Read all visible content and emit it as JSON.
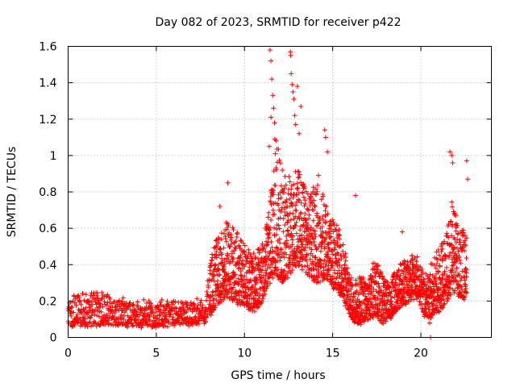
{
  "chart_data": {
    "type": "scatter",
    "title": "Day 082 of 2023, SRMTID for receiver p422",
    "xlabel": "GPS time / hours",
    "ylabel": "SRMTID / TECUs",
    "xlim": [
      0,
      24
    ],
    "ylim": [
      0,
      1.6
    ],
    "xticks": [
      0,
      5,
      10,
      15,
      20
    ],
    "yticks": [
      0,
      0.2,
      0.4,
      0.6,
      0.8,
      1,
      1.2,
      1.4,
      1.6
    ],
    "xtick_labels": [
      "0",
      "5",
      "10",
      "15",
      "20"
    ],
    "ytick_labels": [
      "0",
      "0.2",
      "0.4",
      "0.6",
      "0.8",
      "1",
      "1.2",
      "1.4",
      "1.6"
    ],
    "grid": true,
    "marker": "+",
    "color": "#ff0000",
    "series": [
      {
        "name": "SRMTID",
        "profile_x": [
          0.0,
          1.0,
          2.0,
          3.0,
          4.0,
          5.0,
          6.0,
          7.0,
          7.8,
          8.2,
          8.6,
          9.0,
          9.4,
          9.8,
          10.2,
          10.6,
          11.0,
          11.4,
          11.8,
          12.2,
          12.6,
          13.0,
          13.4,
          13.8,
          14.2,
          14.6,
          15.0,
          15.4,
          15.8,
          16.2,
          16.6,
          17.0,
          17.4,
          17.8,
          18.2,
          18.6,
          19.0,
          19.4,
          19.8,
          20.2,
          20.6,
          21.0,
          21.4,
          21.8,
          22.2,
          22.6
        ],
        "profile_y_low": [
          0.06,
          0.06,
          0.07,
          0.07,
          0.06,
          0.06,
          0.07,
          0.07,
          0.08,
          0.15,
          0.2,
          0.22,
          0.2,
          0.18,
          0.16,
          0.15,
          0.2,
          0.3,
          0.34,
          0.3,
          0.35,
          0.4,
          0.36,
          0.32,
          0.3,
          0.32,
          0.28,
          0.24,
          0.16,
          0.08,
          0.08,
          0.1,
          0.12,
          0.08,
          0.1,
          0.15,
          0.18,
          0.2,
          0.22,
          0.12,
          0.1,
          0.14,
          0.18,
          0.25,
          0.22,
          0.2
        ],
        "profile_y_high": [
          0.22,
          0.24,
          0.25,
          0.22,
          0.2,
          0.2,
          0.2,
          0.2,
          0.22,
          0.5,
          0.6,
          0.65,
          0.6,
          0.55,
          0.5,
          0.45,
          0.55,
          0.7,
          1.1,
          0.95,
          0.9,
          0.95,
          0.85,
          0.8,
          0.9,
          0.75,
          0.65,
          0.6,
          0.42,
          0.3,
          0.35,
          0.3,
          0.45,
          0.35,
          0.3,
          0.38,
          0.42,
          0.45,
          0.45,
          0.35,
          0.4,
          0.5,
          0.55,
          0.8,
          0.6,
          0.6
        ],
        "outliers": [
          [
            11.45,
            1.58
          ],
          [
            11.5,
            1.52
          ],
          [
            11.55,
            1.42
          ],
          [
            11.6,
            1.33
          ],
          [
            11.65,
            1.26
          ],
          [
            11.7,
            1.18
          ],
          [
            11.72,
            1.09
          ],
          [
            11.75,
            1.01
          ],
          [
            11.4,
            1.05
          ],
          [
            11.5,
            1.21
          ],
          [
            12.6,
            1.57
          ],
          [
            12.62,
            1.55
          ],
          [
            12.7,
            1.39
          ],
          [
            12.75,
            1.35
          ],
          [
            12.8,
            1.31
          ],
          [
            12.65,
            1.45
          ],
          [
            12.85,
            1.22
          ],
          [
            13.0,
            1.38
          ],
          [
            13.2,
            1.27
          ],
          [
            12.9,
            1.17
          ],
          [
            13.1,
            1.12
          ],
          [
            14.55,
            1.14
          ],
          [
            14.6,
            1.1
          ],
          [
            14.7,
            1.02
          ],
          [
            21.65,
            1.02
          ],
          [
            21.75,
            1.0
          ],
          [
            21.8,
            0.96
          ],
          [
            22.6,
            0.97
          ],
          [
            22.65,
            0.87
          ],
          [
            9.05,
            0.85
          ],
          [
            16.3,
            0.78
          ],
          [
            8.6,
            0.72
          ],
          [
            20.55,
            0.0
          ],
          [
            20.5,
            0.08
          ],
          [
            18.95,
            0.58
          ]
        ]
      }
    ]
  }
}
